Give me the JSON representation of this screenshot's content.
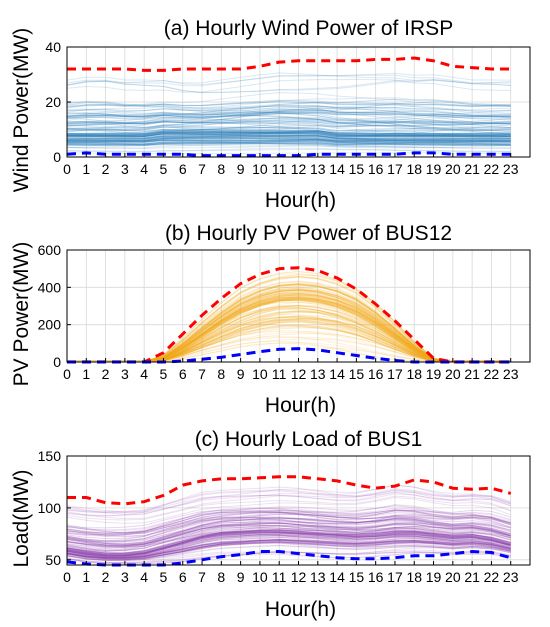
{
  "chart_data": [
    {
      "type": "line",
      "title": "(a) Hourly Wind Power of IRSP",
      "xlabel": "Hour(h)",
      "ylabel": "Wind Power(MW)",
      "x": [
        0,
        1,
        2,
        3,
        4,
        5,
        6,
        7,
        8,
        9,
        10,
        11,
        12,
        13,
        14,
        15,
        16,
        17,
        18,
        19,
        20,
        21,
        22,
        23
      ],
      "xlim": [
        0,
        24
      ],
      "ylim": [
        0,
        40
      ],
      "yticks": [
        0,
        20,
        40
      ],
      "grid": true,
      "colors": {
        "scenarios": "#1f77b4",
        "upper": "#ff0000",
        "lower": "#0000ff"
      },
      "scenario_band": {
        "lower": [
          1,
          1,
          1,
          1,
          1,
          1,
          1,
          1,
          1,
          1,
          1,
          1,
          1,
          1,
          1,
          1,
          1,
          1,
          1,
          1,
          1,
          1,
          1,
          1
        ],
        "upper": [
          28,
          29,
          29,
          28,
          28,
          28,
          27,
          27,
          28,
          29,
          30,
          31,
          31,
          31,
          31,
          31,
          31,
          31,
          30,
          30,
          29,
          28,
          28,
          28
        ],
        "dense_center": [
          8,
          8,
          8,
          8,
          8,
          9,
          9,
          9,
          9,
          9,
          9,
          9,
          9,
          9,
          8,
          8,
          8,
          8,
          8,
          8,
          8,
          8,
          8,
          8
        ]
      },
      "series": [
        {
          "values": [
            32,
            32,
            32,
            32,
            31.5,
            31.5,
            32,
            32,
            32,
            32,
            33,
            34.5,
            35,
            35,
            35,
            35,
            35.5,
            35.5,
            36,
            35,
            33,
            32.5,
            32,
            32
          ]
        },
        {
          "values": [
            1,
            1.5,
            1,
            1,
            1,
            1,
            1,
            0.5,
            0.5,
            0.5,
            0.5,
            0.5,
            0.5,
            1,
            1,
            1,
            1,
            1,
            1.5,
            1.5,
            1,
            1,
            1,
            1
          ]
        }
      ]
    },
    {
      "type": "line",
      "title": "(b) Hourly PV Power of BUS12",
      "xlabel": "Hour(h)",
      "ylabel": "PV Power(MW)",
      "x": [
        0,
        1,
        2,
        3,
        4,
        5,
        6,
        7,
        8,
        9,
        10,
        11,
        12,
        13,
        14,
        15,
        16,
        17,
        18,
        19,
        20,
        21,
        22,
        23
      ],
      "xlim": [
        0,
        24
      ],
      "ylim": [
        0,
        600
      ],
      "yticks": [
        0,
        200,
        400,
        600
      ],
      "grid": true,
      "colors": {
        "scenarios": "#f0a818",
        "upper": "#ff0000",
        "lower": "#0000ff"
      },
      "scenario_band": {
        "lower": [
          0,
          0,
          0,
          0,
          0,
          0,
          10,
          20,
          30,
          45,
          55,
          62,
          65,
          62,
          55,
          40,
          25,
          12,
          3,
          0,
          0,
          0,
          0,
          0
        ],
        "upper": [
          0,
          0,
          0,
          0,
          0,
          40,
          130,
          230,
          320,
          400,
          450,
          480,
          490,
          480,
          450,
          400,
          320,
          220,
          110,
          20,
          0,
          0,
          0,
          0
        ],
        "dense_center": [
          0,
          0,
          0,
          0,
          0,
          15,
          70,
          140,
          210,
          270,
          310,
          335,
          340,
          330,
          305,
          265,
          205,
          135,
          65,
          10,
          0,
          0,
          0,
          0
        ]
      },
      "series": [
        {
          "values": [
            0,
            0,
            0,
            0,
            0,
            50,
            150,
            250,
            340,
            420,
            470,
            500,
            505,
            490,
            450,
            390,
            310,
            220,
            120,
            20,
            0,
            0,
            0,
            0
          ]
        },
        {
          "values": [
            0,
            0,
            0,
            0,
            0,
            0,
            5,
            15,
            25,
            40,
            55,
            68,
            72,
            65,
            50,
            35,
            20,
            8,
            0,
            0,
            0,
            0,
            0,
            0
          ]
        }
      ]
    },
    {
      "type": "line",
      "title": "(c) Hourly Load of BUS1",
      "xlabel": "Hour(h)",
      "ylabel": "Load(MW)",
      "x": [
        0,
        1,
        2,
        3,
        4,
        5,
        6,
        7,
        8,
        9,
        10,
        11,
        12,
        13,
        14,
        15,
        16,
        17,
        18,
        19,
        20,
        21,
        22,
        23
      ],
      "xlim": [
        0,
        24
      ],
      "ylim": [
        45,
        150
      ],
      "yticks": [
        50,
        100,
        150
      ],
      "grid": true,
      "colors": {
        "scenarios": "#8e44ad",
        "upper": "#ff0000",
        "lower": "#0000ff"
      },
      "scenario_band": {
        "lower": [
          50,
          47,
          46,
          46,
          46,
          47,
          48,
          50,
          52,
          53,
          54,
          55,
          54,
          53,
          52,
          52,
          53,
          54,
          55,
          55,
          54,
          55,
          55,
          52
        ],
        "upper": [
          102,
          100,
          99,
          99,
          100,
          105,
          110,
          115,
          117,
          118,
          119,
          120,
          119,
          117,
          115,
          115,
          118,
          122,
          120,
          116,
          114,
          115,
          114,
          108
        ],
        "dense_center": [
          60,
          57,
          55,
          55,
          57,
          62,
          67,
          72,
          75,
          76,
          77,
          77,
          76,
          75,
          74,
          73,
          74,
          76,
          76,
          74,
          72,
          73,
          70,
          65
        ]
      },
      "series": [
        {
          "values": [
            110,
            110,
            105,
            104,
            106,
            112,
            122,
            126,
            128,
            128,
            129,
            130,
            130,
            128,
            126,
            122,
            119,
            121,
            127,
            125,
            119,
            118,
            119,
            114
          ]
        },
        {
          "values": [
            48,
            46,
            45,
            45,
            45,
            45,
            47,
            50,
            53,
            55,
            58,
            58,
            56,
            54,
            52,
            51,
            51,
            52,
            54,
            54,
            56,
            58,
            57,
            52
          ]
        }
      ]
    }
  ]
}
